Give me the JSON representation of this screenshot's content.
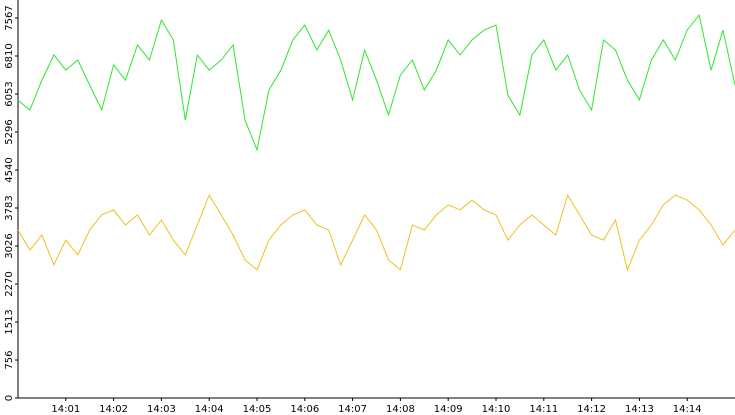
{
  "chart_data": {
    "type": "line",
    "x": [
      0,
      0.25,
      0.5,
      0.75,
      1,
      1.25,
      1.5,
      1.75,
      2,
      2.25,
      2.5,
      2.75,
      3,
      3.25,
      3.5,
      3.75,
      4,
      4.25,
      4.5,
      4.75,
      5,
      5.25,
      5.5,
      5.75,
      6,
      6.25,
      6.5,
      6.75,
      7,
      7.25,
      7.5,
      7.75,
      8,
      8.25,
      8.5,
      8.75,
      9,
      9.25,
      9.5,
      9.75,
      10,
      10.25,
      10.5,
      10.75,
      11,
      11.25,
      11.5,
      11.75,
      12,
      12.25,
      12.5,
      12.75,
      13,
      13.25,
      13.5,
      13.75,
      14,
      14.25,
      14.5,
      14.75,
      15
    ],
    "series": [
      {
        "color": "#2ee62e",
        "values": [
          5930,
          5735,
          6330,
          6830,
          6530,
          6730,
          6230,
          5735,
          6630,
          6330,
          7030,
          6730,
          7525,
          7130,
          5535,
          6830,
          6530,
          6730,
          7030,
          5535,
          4940,
          6130,
          6530,
          7130,
          7425,
          6930,
          7325,
          6730,
          5935,
          6930,
          6330,
          5635,
          6430,
          6730,
          6130,
          6530,
          7130,
          6830,
          7130,
          7325,
          7425,
          6030,
          5635,
          6830,
          7130,
          6530,
          6830,
          6130,
          5735,
          7130,
          6930,
          6330,
          5935,
          6730,
          7130,
          6730,
          7325,
          7625,
          6530,
          7325,
          6230
        ]
      },
      {
        "color": "#f0c020",
        "values": [
          3345,
          2945,
          3245,
          2650,
          3145,
          2850,
          3345,
          3645,
          3745,
          3445,
          3645,
          3245,
          3545,
          3145,
          2850,
          3445,
          4040,
          3645,
          3245,
          2750,
          2550,
          3145,
          3445,
          3645,
          3745,
          3445,
          3345,
          2650,
          3145,
          3645,
          3345,
          2750,
          2550,
          3445,
          3345,
          3645,
          3845,
          3745,
          3940,
          3745,
          3645,
          3145,
          3445,
          3645,
          3445,
          3245,
          4040,
          3645,
          3245,
          3145,
          3545,
          2550,
          3145,
          3445,
          3845,
          4040,
          3940,
          3745,
          3445,
          3045,
          3345
        ]
      }
    ],
    "xlim": [
      0,
      15
    ],
    "xticks": [
      {
        "value": 1,
        "label": "14:01"
      },
      {
        "value": 2,
        "label": "14:02"
      },
      {
        "value": 3,
        "label": "14:03"
      },
      {
        "value": 4,
        "label": "14:04"
      },
      {
        "value": 5,
        "label": "14:05"
      },
      {
        "value": 6,
        "label": "14:06"
      },
      {
        "value": 7,
        "label": "14:07"
      },
      {
        "value": 8,
        "label": "14:08"
      },
      {
        "value": 9,
        "label": "14:09"
      },
      {
        "value": 10,
        "label": "14:10"
      },
      {
        "value": 11,
        "label": "14:11"
      },
      {
        "value": 12,
        "label": "14:12"
      },
      {
        "value": 13,
        "label": "14:13"
      },
      {
        "value": 14,
        "label": "14:14"
      }
    ],
    "ylim": [
      0,
      7925
    ],
    "yticks": [
      0,
      756,
      1513,
      2270,
      3026,
      3783,
      4540,
      5296,
      6053,
      6810,
      7567
    ]
  }
}
